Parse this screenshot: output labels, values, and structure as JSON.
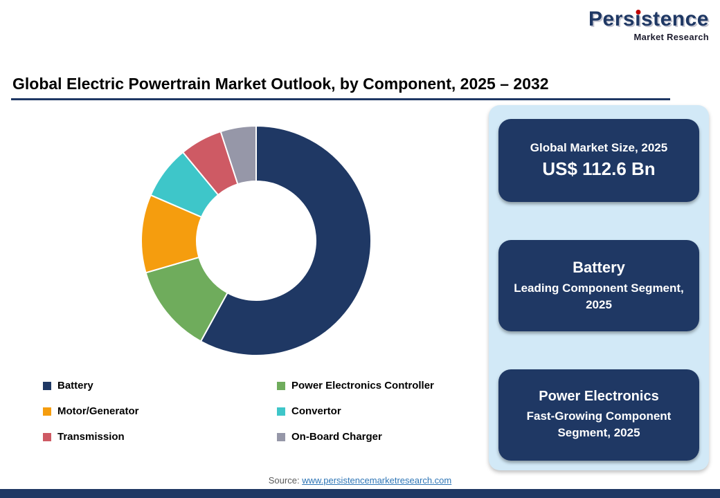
{
  "logo": {
    "name": "Persistence",
    "tagline": "Market Research",
    "dot_color": "#C00000",
    "text_color": "#1F3864"
  },
  "header": {
    "title": "Global Electric Powertrain Market Outlook, by Component, 2025 – 2032"
  },
  "chart_data": {
    "type": "pie",
    "subtype": "donut",
    "title": "Global Electric Powertrain Market Outlook, by Component, 2025 – 2032",
    "categories": [
      "Battery",
      "Power Electronics Controller",
      "Motor/Generator",
      "Convertor",
      "Transmission",
      "On-Board Charger"
    ],
    "values": [
      58,
      12.5,
      11,
      7.5,
      6,
      5
    ],
    "values_estimated": true,
    "unit": "% share",
    "colors": [
      "#1F3864",
      "#6FAC5C",
      "#F59D0E",
      "#3EC6C9",
      "#CE5A64",
      "#9697A8"
    ],
    "start_angle_deg": 0,
    "direction": "clockwise",
    "inner_radius_ratio": 0.52,
    "legend_position": "bottom-two-columns"
  },
  "sidebar": {
    "panel_bg": "#D2E9F7",
    "box_bg": "#1F3864",
    "boxes": [
      {
        "line1": "Global Market Size, 2025",
        "line2": "US$ 112.6 Bn"
      },
      {
        "line1": "Battery",
        "line2": "Leading Component Segment, 2025"
      },
      {
        "line1": "Power Electronics",
        "line2": "Fast-Growing Component Segment, 2025"
      }
    ]
  },
  "footer": {
    "source_label": "Source:",
    "source_link": "www.persistencemarketresearch.com"
  },
  "colors": {
    "navy": "#1F3864",
    "title_rule": "#1F3864",
    "link": "#2E75B6",
    "source_label": "#595959",
    "bottom_bar": "#1F3864"
  }
}
